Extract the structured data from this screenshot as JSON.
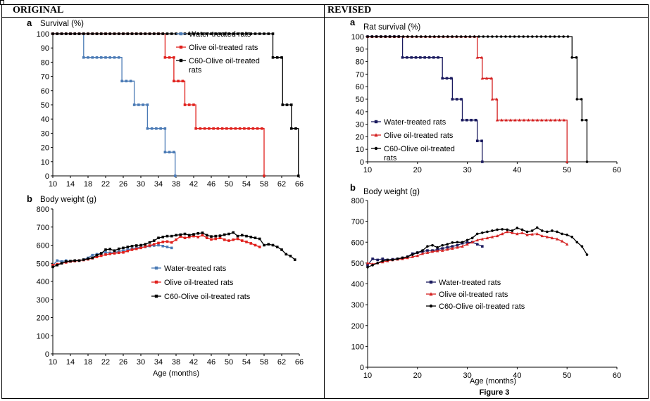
{
  "headers": {
    "left": "ORIGINAL",
    "right": "REVISED"
  },
  "figure_caption": "Figure 3",
  "chart_data": [
    {
      "id": "orig_a",
      "type": "line",
      "step": true,
      "panel_letter": "a",
      "title": "Survival (%)",
      "xlabel": "",
      "xlim": [
        10,
        66
      ],
      "xticks": [
        10,
        14,
        18,
        22,
        26,
        30,
        34,
        38,
        42,
        46,
        50,
        54,
        58,
        62,
        66
      ],
      "ylim": [
        0,
        100
      ],
      "yticks": [
        0,
        10,
        20,
        30,
        40,
        50,
        60,
        70,
        80,
        90,
        100
      ],
      "legend_position": "top-right",
      "series": [
        {
          "name": "Water-treated rats",
          "color": "#4a7ab5",
          "marker": "square",
          "x": [
            10,
            17,
            25.7,
            28.5,
            31.5,
            35.5,
            37.8
          ],
          "y": [
            100,
            83.3,
            66.7,
            50,
            33.3,
            16.7,
            0
          ]
        },
        {
          "name": "Olive oil-treated rats",
          "color": "#e0201c",
          "marker": "square",
          "x": [
            10,
            35.5,
            37.5,
            40,
            42.5,
            58
          ],
          "y": [
            100,
            83.3,
            66.7,
            50,
            33.3,
            0
          ]
        },
        {
          "name": "C60-Olive oil-treated rats",
          "color": "#000000",
          "marker": "square",
          "x": [
            10,
            60,
            62.2,
            64.2,
            65.8
          ],
          "y": [
            100,
            83.3,
            50,
            33.3,
            0
          ]
        }
      ]
    },
    {
      "id": "orig_b",
      "type": "line",
      "panel_letter": "b",
      "title": "Body weight (g)",
      "xlabel": "Age (months)",
      "xlim": [
        10,
        66
      ],
      "xticks": [
        10,
        14,
        18,
        22,
        26,
        30,
        34,
        38,
        42,
        46,
        50,
        54,
        58,
        62,
        66
      ],
      "ylim": [
        0,
        800
      ],
      "yticks": [
        0,
        100,
        200,
        300,
        400,
        500,
        600,
        700,
        800
      ],
      "legend_position": "center",
      "series": [
        {
          "name": "Water-treated rats",
          "color": "#4a7ab5",
          "marker": "square",
          "x": [
            10,
            11,
            12,
            13,
            14,
            15,
            16,
            17,
            18,
            19,
            20,
            21,
            22,
            23,
            24,
            25,
            26,
            27,
            28,
            29,
            30,
            31,
            32,
            33,
            34,
            35,
            36,
            37
          ],
          "y": [
            490,
            515,
            510,
            515,
            510,
            512,
            515,
            520,
            530,
            545,
            550,
            555,
            560,
            558,
            560,
            565,
            570,
            575,
            580,
            585,
            590,
            590,
            595,
            598,
            600,
            595,
            590,
            585
          ]
        },
        {
          "name": "Olive oil-treated rats",
          "color": "#e0201c",
          "marker": "square",
          "x": [
            10,
            11,
            12,
            13,
            14,
            15,
            16,
            17,
            18,
            19,
            20,
            21,
            22,
            23,
            24,
            25,
            26,
            27,
            28,
            29,
            30,
            31,
            32,
            33,
            34,
            35,
            36,
            37,
            38,
            39,
            40,
            41,
            42,
            43,
            44,
            45,
            46,
            47,
            48,
            49,
            50,
            51,
            52,
            53,
            54,
            55,
            56,
            57
          ],
          "y": [
            490,
            495,
            500,
            505,
            510,
            512,
            515,
            518,
            522,
            528,
            535,
            542,
            548,
            552,
            555,
            558,
            560,
            568,
            575,
            580,
            585,
            592,
            598,
            605,
            612,
            618,
            620,
            615,
            630,
            648,
            640,
            645,
            650,
            645,
            655,
            640,
            632,
            635,
            640,
            630,
            625,
            630,
            635,
            625,
            618,
            610,
            600,
            590
          ]
        },
        {
          "name": "C60-Olive oil-treated rats",
          "color": "#000000",
          "marker": "square",
          "x": [
            10,
            11,
            12,
            13,
            14,
            15,
            16,
            17,
            18,
            19,
            20,
            21,
            22,
            23,
            24,
            25,
            26,
            27,
            28,
            29,
            30,
            31,
            32,
            33,
            34,
            35,
            36,
            37,
            38,
            39,
            40,
            41,
            42,
            43,
            44,
            45,
            46,
            47,
            48,
            49,
            50,
            51,
            52,
            53,
            54,
            55,
            56,
            57,
            58,
            59,
            60,
            61,
            62,
            63,
            64,
            65
          ],
          "y": [
            480,
            490,
            500,
            510,
            512,
            515,
            515,
            520,
            525,
            530,
            545,
            555,
            575,
            578,
            570,
            580,
            585,
            590,
            595,
            598,
            600,
            605,
            615,
            625,
            640,
            645,
            650,
            650,
            655,
            658,
            662,
            655,
            660,
            665,
            668,
            655,
            648,
            650,
            652,
            658,
            662,
            670,
            650,
            655,
            650,
            645,
            640,
            635,
            600,
            605,
            600,
            590,
            575,
            550,
            540,
            520
          ]
        }
      ]
    },
    {
      "id": "rev_a",
      "type": "line",
      "step": true,
      "panel_letter": "a",
      "title": "Rat survival (%)",
      "xlabel": "",
      "xlim": [
        10,
        60
      ],
      "xticks": [
        10,
        20,
        30,
        40,
        50,
        60
      ],
      "ylim": [
        0,
        100
      ],
      "yticks": [
        0,
        10,
        20,
        30,
        40,
        50,
        60,
        70,
        80,
        90,
        100
      ],
      "legend_position": "bottom-left",
      "series": [
        {
          "name": "Water-treated rats",
          "color": "#1a1a5e",
          "marker": "square",
          "x": [
            10,
            17,
            25,
            27,
            29,
            32,
            33
          ],
          "y": [
            100,
            83.3,
            66.7,
            50,
            33.3,
            16.7,
            0
          ]
        },
        {
          "name": "Olive oil-treated rats",
          "color": "#d42020",
          "marker": "triangle",
          "x": [
            10,
            32,
            33,
            35,
            36,
            50
          ],
          "y": [
            100,
            83.3,
            66.7,
            50,
            33.3,
            0
          ]
        },
        {
          "name": "C60-Olive oil-treated rats",
          "color": "#000000",
          "marker": "circle",
          "x": [
            10,
            51,
            52,
            53,
            54
          ],
          "y": [
            100,
            83.3,
            50,
            33.3,
            0
          ]
        }
      ]
    },
    {
      "id": "rev_b",
      "type": "line",
      "panel_letter": "b",
      "title": "Body weight (g)",
      "xlabel": "Age (months)",
      "xlim": [
        10,
        60
      ],
      "xticks": [
        10,
        20,
        30,
        40,
        50,
        60
      ],
      "ylim": [
        0,
        800
      ],
      "yticks": [
        0,
        100,
        200,
        300,
        400,
        500,
        600,
        700,
        800
      ],
      "legend_position": "center",
      "series": [
        {
          "name": "Water-treated rats",
          "color": "#1a1a5e",
          "marker": "square",
          "x": [
            10,
            11,
            12,
            13,
            14,
            15,
            16,
            17,
            18,
            19,
            20,
            21,
            22,
            23,
            24,
            25,
            26,
            27,
            28,
            29,
            30,
            31,
            32,
            33
          ],
          "y": [
            490,
            520,
            515,
            520,
            515,
            518,
            520,
            525,
            530,
            545,
            550,
            555,
            560,
            560,
            565,
            570,
            575,
            580,
            585,
            595,
            598,
            600,
            590,
            580
          ]
        },
        {
          "name": "Olive oil-treated rats",
          "color": "#d42020",
          "marker": "triangle",
          "x": [
            10,
            11,
            12,
            13,
            14,
            15,
            16,
            17,
            18,
            19,
            20,
            21,
            22,
            23,
            24,
            25,
            26,
            27,
            28,
            29,
            30,
            31,
            32,
            33,
            34,
            35,
            36,
            37,
            38,
            39,
            40,
            41,
            42,
            43,
            44,
            45,
            46,
            47,
            48,
            49,
            50
          ],
          "y": [
            500,
            495,
            500,
            505,
            510,
            515,
            518,
            520,
            525,
            530,
            535,
            545,
            550,
            555,
            558,
            560,
            565,
            570,
            575,
            580,
            590,
            600,
            610,
            615,
            620,
            625,
            630,
            640,
            650,
            645,
            640,
            645,
            635,
            638,
            640,
            630,
            625,
            620,
            615,
            605,
            590
          ]
        },
        {
          "name": "C60-Olive oil-treated rats",
          "color": "#000000",
          "marker": "circle",
          "x": [
            10,
            11,
            12,
            13,
            14,
            15,
            16,
            17,
            18,
            19,
            20,
            21,
            22,
            23,
            24,
            25,
            26,
            27,
            28,
            29,
            30,
            31,
            32,
            33,
            34,
            35,
            36,
            37,
            38,
            39,
            40,
            41,
            42,
            43,
            44,
            45,
            46,
            47,
            48,
            49,
            50,
            51,
            52,
            53,
            54
          ],
          "y": [
            480,
            490,
            500,
            510,
            515,
            515,
            520,
            525,
            530,
            540,
            550,
            560,
            580,
            585,
            575,
            585,
            590,
            598,
            600,
            600,
            610,
            620,
            640,
            645,
            650,
            655,
            660,
            662,
            660,
            655,
            668,
            660,
            650,
            655,
            670,
            655,
            650,
            655,
            650,
            640,
            635,
            625,
            600,
            580,
            540
          ]
        }
      ]
    }
  ]
}
